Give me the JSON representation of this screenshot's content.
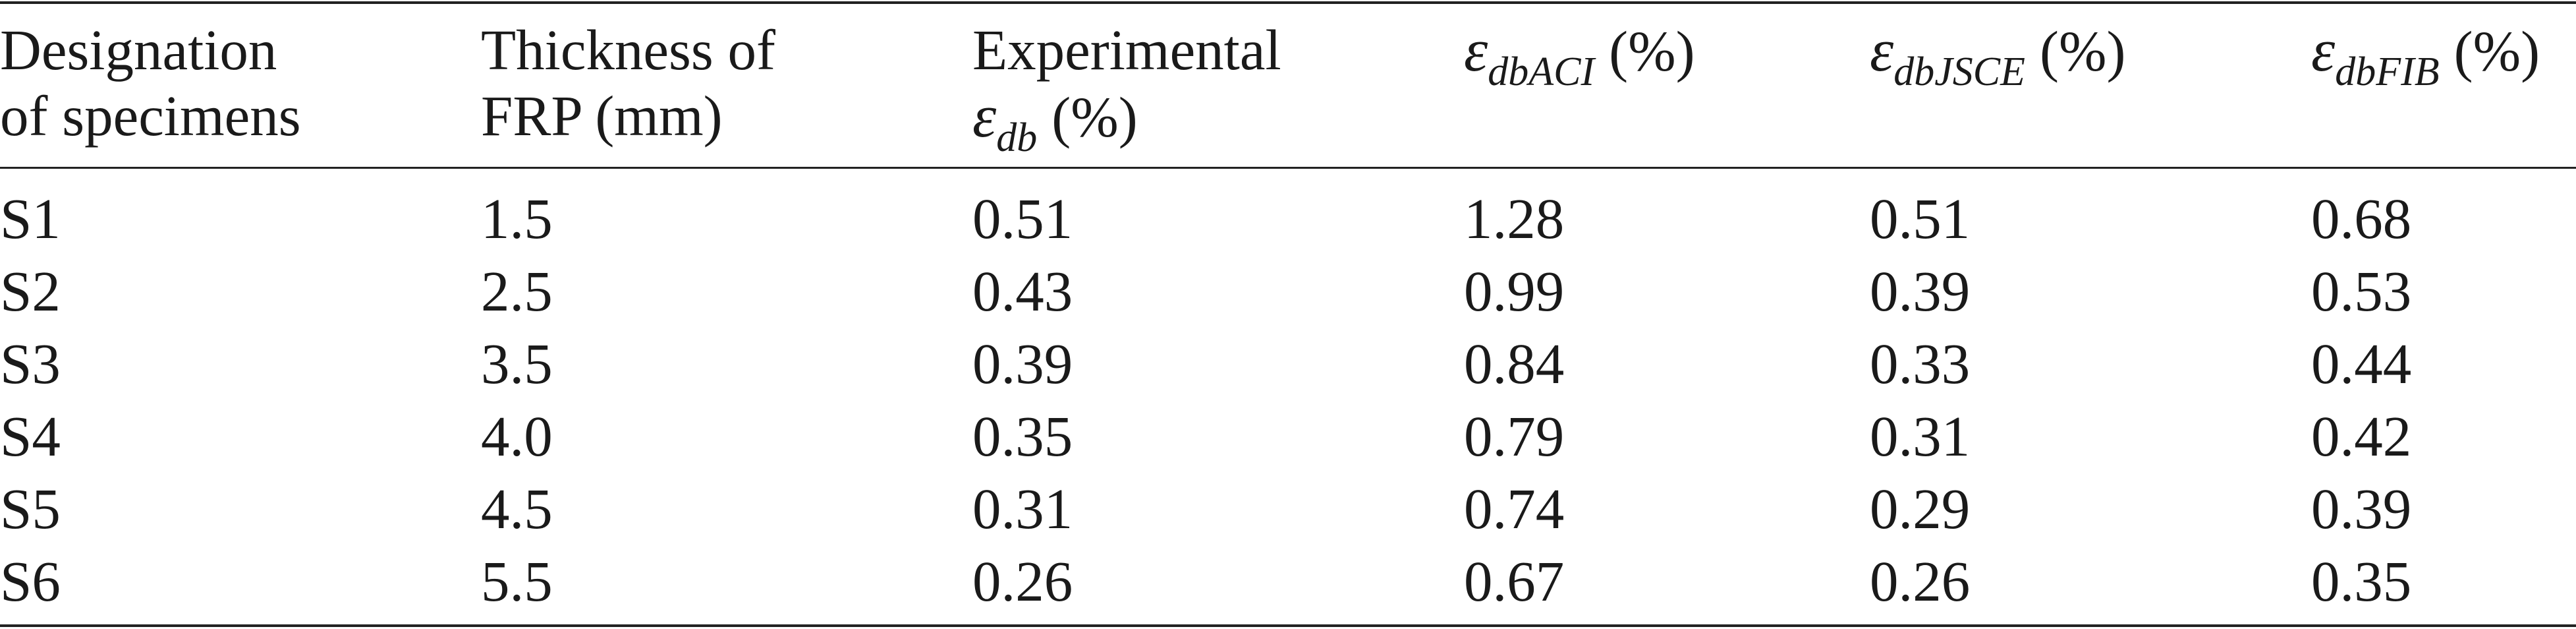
{
  "table": {
    "headers": [
      {
        "line1": "Designation",
        "line2": "of  specimens"
      },
      {
        "line1": "Thickness  of",
        "line2": "FRP  (mm)"
      },
      {
        "line1": "Experimental",
        "symbol": "ε",
        "subscript": "db",
        "unit": "(%)"
      },
      {
        "symbol": "ε",
        "subscript": "dbACI",
        "unit": "(%)"
      },
      {
        "symbol": "ε",
        "subscript": "dbJSCE",
        "unit": "(%)"
      },
      {
        "symbol": "ε",
        "subscript": "dbFIB",
        "unit": "(%)"
      }
    ],
    "rows": [
      [
        "S1",
        "1.5",
        "0.51",
        "1.28",
        "0.51",
        "0.68"
      ],
      [
        "S2",
        "2.5",
        "0.43",
        "0.99",
        "0.39",
        "0.53"
      ],
      [
        "S3",
        "3.5",
        "0.39",
        "0.84",
        "0.33",
        "0.44"
      ],
      [
        "S4",
        "4.0",
        "0.35",
        "0.79",
        "0.31",
        "0.42"
      ],
      [
        "S5",
        "4.5",
        "0.31",
        "0.74",
        "0.29",
        "0.39"
      ],
      [
        "S6",
        "5.5",
        "0.26",
        "0.67",
        "0.26",
        "0.35"
      ]
    ]
  }
}
